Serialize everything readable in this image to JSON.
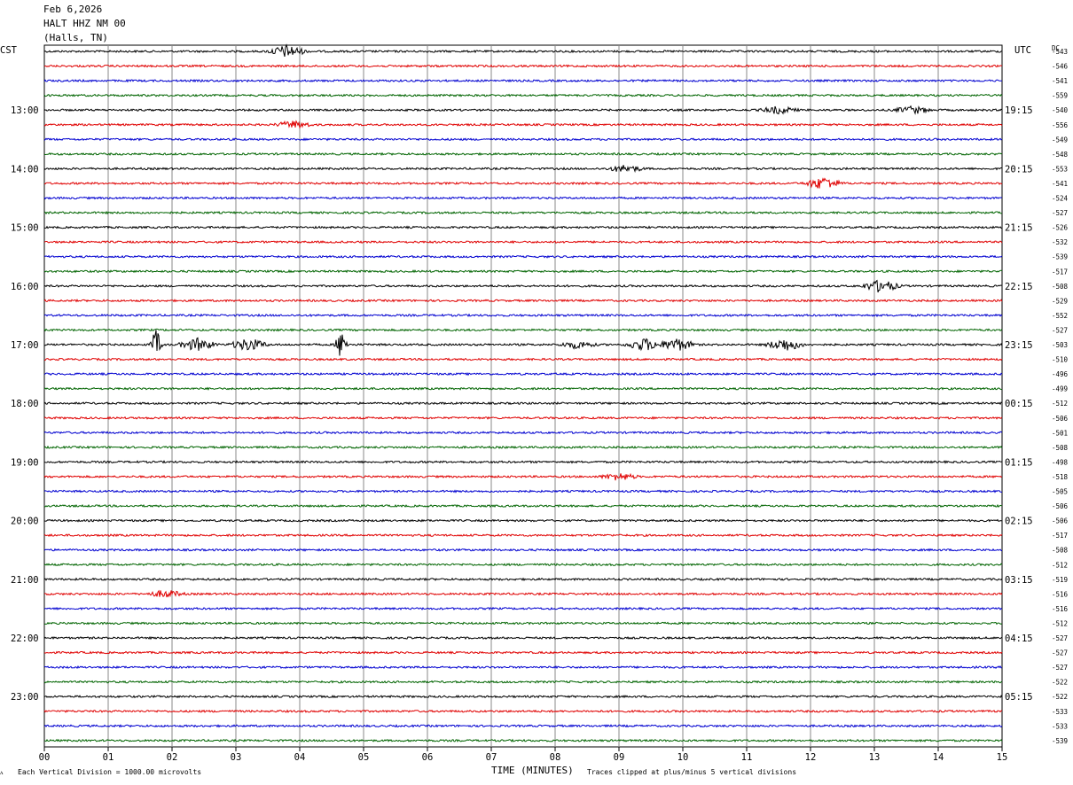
{
  "header": {
    "date": "Feb 6,2026",
    "station": "HALT HHZ NM 00",
    "location": "(Halls, TN)"
  },
  "left_tz": "CST",
  "right_tz": "UTC",
  "dc_label": "DC",
  "footer": {
    "division_note": "Each Vertical Division = 1000.00 microvolts",
    "xlabel": "TIME (MINUTES)",
    "clip_note": "Traces clipped at plus/minus 5 vertical divisions",
    "corner_mark": "ᴧ"
  },
  "chart_data": {
    "type": "line",
    "kind": "helicorder",
    "xlabel": "TIME (MINUTES)",
    "xlim": [
      0,
      15
    ],
    "x_ticks": [
      "00",
      "01",
      "02",
      "03",
      "04",
      "05",
      "06",
      "07",
      "08",
      "09",
      "10",
      "11",
      "12",
      "13",
      "14",
      "15"
    ],
    "trace_minutes": 15,
    "trace_count": 48,
    "color_cycle": [
      "#000000",
      "#e00000",
      "#0000d0",
      "#006400"
    ],
    "grid": true,
    "left_hour_labels": [
      "13:00",
      "14:00",
      "15:00",
      "16:00",
      "17:00",
      "18:00",
      "19:00",
      "20:00",
      "21:00",
      "22:00",
      "23:00"
    ],
    "right_hour_labels": [
      "19:15",
      "20:15",
      "21:15",
      "22:15",
      "23:15",
      "00:15",
      "01:15",
      "02:15",
      "03:15",
      "04:15",
      "05:15"
    ],
    "hour_label_first_trace": 4,
    "hour_label_every": 4,
    "dc_offsets": [
      -543,
      -546,
      -541,
      -559,
      -540,
      -556,
      -549,
      -548,
      -553,
      -541,
      -524,
      -527,
      -526,
      -532,
      -539,
      -517,
      -508,
      -529,
      -552,
      -527,
      -503,
      -510,
      -496,
      -499,
      -512,
      -506,
      -501,
      -508,
      -498,
      -518,
      -505,
      -506,
      -506,
      -517,
      -508,
      -512,
      -519,
      -516,
      -516,
      -512,
      -527,
      -527,
      -527,
      -522,
      -522,
      -533,
      -533,
      -539
    ],
    "events": [
      {
        "trace": 0,
        "minute": 3.8,
        "amplitude": "moderate"
      },
      {
        "trace": 4,
        "minute": 11.5,
        "amplitude": "low"
      },
      {
        "trace": 4,
        "minute": 13.6,
        "amplitude": "low"
      },
      {
        "trace": 5,
        "minute": 3.9,
        "amplitude": "low"
      },
      {
        "trace": 8,
        "minute": 9.1,
        "amplitude": "low"
      },
      {
        "trace": 9,
        "minute": 12.2,
        "amplitude": "moderate"
      },
      {
        "trace": 16,
        "minute": 13.1,
        "amplitude": "moderate"
      },
      {
        "trace": 20,
        "minute": 1.75,
        "amplitude": "large"
      },
      {
        "trace": 20,
        "minute": 2.4,
        "amplitude": "moderate"
      },
      {
        "trace": 20,
        "minute": 3.2,
        "amplitude": "moderate"
      },
      {
        "trace": 20,
        "minute": 4.65,
        "amplitude": "large"
      },
      {
        "trace": 20,
        "minute": 8.35,
        "amplitude": "low"
      },
      {
        "trace": 20,
        "minute": 9.4,
        "amplitude": "moderate"
      },
      {
        "trace": 20,
        "minute": 9.9,
        "amplitude": "moderate"
      },
      {
        "trace": 20,
        "minute": 11.6,
        "amplitude": "moderate"
      },
      {
        "trace": 29,
        "minute": 9.0,
        "amplitude": "low"
      },
      {
        "trace": 37,
        "minute": 1.9,
        "amplitude": "low"
      }
    ]
  }
}
